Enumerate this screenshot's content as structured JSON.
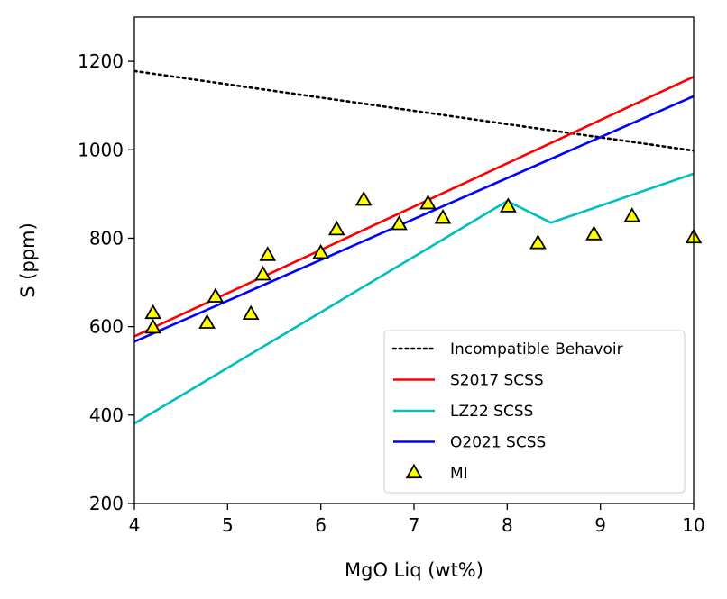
{
  "chart_data": {
    "type": "line",
    "xlabel": "MgO Liq (wt%)",
    "ylabel": "S (ppm)",
    "xlim": [
      4,
      10
    ],
    "ylim": [
      200,
      1300
    ],
    "x_ticks": [
      4,
      5,
      6,
      7,
      8,
      9,
      10
    ],
    "x_tick_labels": [
      "4",
      "5",
      "6",
      "7",
      "8",
      "9",
      "10"
    ],
    "y_ticks": [
      200,
      400,
      600,
      800,
      1000,
      1200
    ],
    "y_tick_labels": [
      "200",
      "400",
      "600",
      "800",
      "1000",
      "1200"
    ],
    "grid": false,
    "legend_position": "lower-right",
    "series": [
      {
        "name": "Incompatible Behavoir",
        "kind": "line",
        "style": "dotted",
        "color": "#000000",
        "x": [
          4,
          10
        ],
        "y": [
          1178,
          998
        ]
      },
      {
        "name": "S2017 SCSS",
        "kind": "line",
        "style": "solid",
        "color": "#ff0000",
        "x": [
          4,
          10
        ],
        "y": [
          578,
          1165
        ]
      },
      {
        "name": "LZ22 SCSS",
        "kind": "line",
        "style": "solid",
        "color": "#00bfbf",
        "x": [
          4,
          8,
          8.47,
          10
        ],
        "y": [
          381,
          884,
          835,
          946
        ]
      },
      {
        "name": "O2021 SCSS",
        "kind": "line",
        "style": "solid",
        "color": "#0000ff",
        "x": [
          4,
          10
        ],
        "y": [
          566,
          1121
        ]
      },
      {
        "name": "MI",
        "kind": "scatter",
        "marker": "triangle",
        "color": "#ffff00",
        "edge_color": "#000000",
        "x": [
          4.2,
          4.2,
          4.78,
          4.87,
          5.25,
          5.38,
          5.43,
          6.0,
          6.17,
          6.46,
          6.84,
          7.15,
          7.31,
          8.01,
          8.33,
          8.93,
          9.34,
          10.0
        ],
        "y": [
          630,
          597,
          608,
          667,
          628,
          717,
          761,
          766,
          819,
          886,
          831,
          878,
          845,
          871,
          788,
          808,
          849,
          801
        ]
      }
    ]
  }
}
